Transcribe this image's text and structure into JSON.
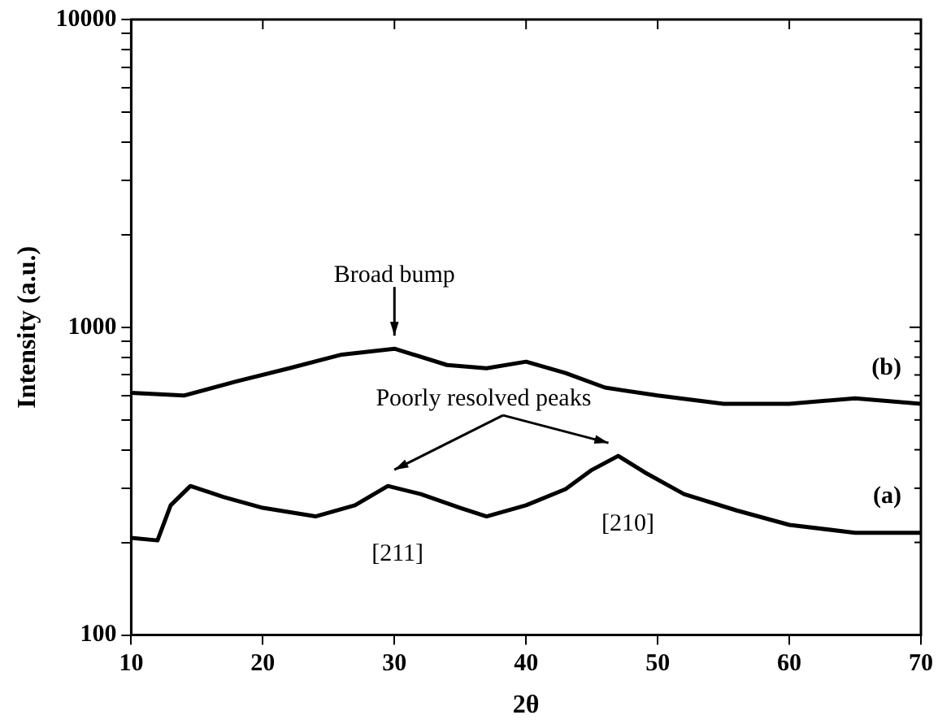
{
  "chart_data": {
    "type": "line",
    "xlabel": "2θ",
    "ylabel": "Intensity (a.u.)",
    "log": "y",
    "xlim": [
      10,
      70
    ],
    "xticks": [
      10,
      20,
      30,
      40,
      50,
      60,
      70
    ],
    "ylim": [
      100,
      10000
    ],
    "yticks": [
      100,
      {
        "value": 200,
        "label": null
      },
      {
        "value": 300,
        "label": null
      },
      {
        "value": 400,
        "label": null
      },
      {
        "value": 500,
        "label": null
      },
      {
        "value": 600,
        "label": null
      },
      {
        "value": 700,
        "label": null
      },
      {
        "value": 800,
        "label": null
      },
      {
        "value": 900,
        "label": null
      },
      1000,
      {
        "value": 2000,
        "label": null
      },
      {
        "value": 3000,
        "label": null
      },
      {
        "value": 4000,
        "label": null
      },
      {
        "value": 5000,
        "label": null
      },
      {
        "value": 6000,
        "label": null
      },
      {
        "value": 7000,
        "label": null
      },
      {
        "value": 8000,
        "label": null
      },
      {
        "value": 9000,
        "label": null
      },
      10000
    ],
    "grid": false,
    "legend": "right",
    "marker": "none",
    "line_style": "solid",
    "series": [
      {
        "name": "(b)",
        "color": "#000000",
        "x": [
          10,
          14,
          18,
          22,
          26,
          30,
          34,
          37,
          40,
          43,
          46,
          50,
          55,
          60,
          65,
          70
        ],
        "values": [
          612,
          600,
          667,
          736,
          815,
          852,
          754,
          736,
          773,
          710,
          637,
          600,
          564,
          564,
          588,
          564
        ]
      },
      {
        "name": "(a)",
        "color": "#000000",
        "x": [
          10,
          12,
          13,
          14.5,
          17,
          20,
          24,
          27,
          29.5,
          32,
          35,
          37,
          40,
          43,
          45,
          47,
          49,
          52,
          56,
          60,
          65,
          70
        ],
        "values": [
          207,
          203,
          264,
          305,
          281,
          259,
          243,
          264,
          305,
          287,
          259,
          243,
          264,
          298,
          344,
          382,
          338,
          287,
          254,
          228,
          215,
          215
        ]
      }
    ],
    "annotations": [
      "Broad bump",
      "Poorly resolved peaks",
      "[211]",
      "[210]"
    ]
  }
}
